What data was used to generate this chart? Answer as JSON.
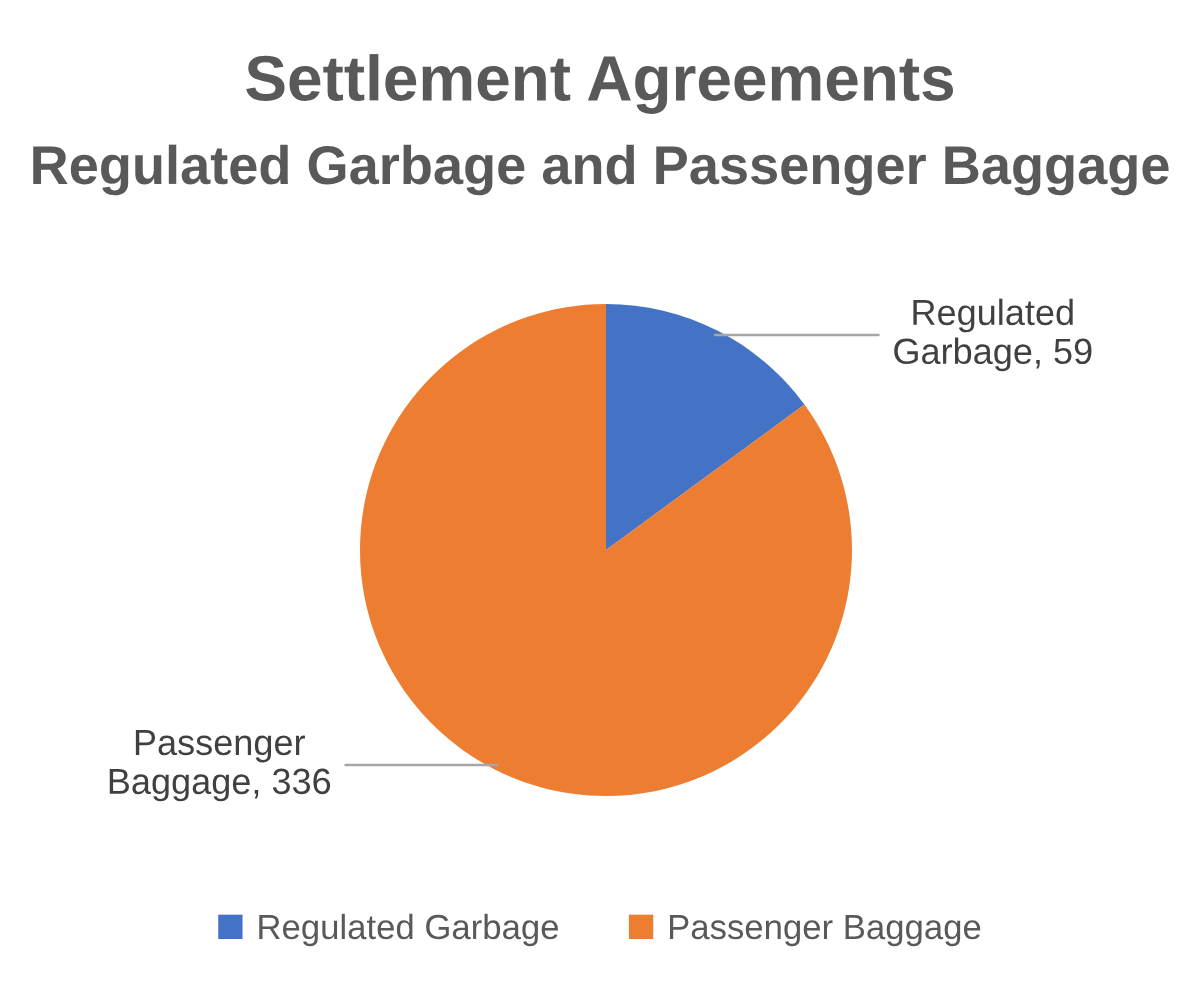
{
  "chart_data": {
    "type": "pie",
    "title": "Settlement Agreements",
    "subtitle": "Regulated Garbage and Passenger Baggage",
    "categories": [
      "Regulated Garbage",
      "Passenger Baggage"
    ],
    "values": [
      59,
      336
    ],
    "colors": [
      "#4472c4",
      "#ed7d31"
    ],
    "value_labels": [
      "Regulated Garbage, 59",
      "Passenger Baggage, 336"
    ],
    "legend": "bottom"
  }
}
